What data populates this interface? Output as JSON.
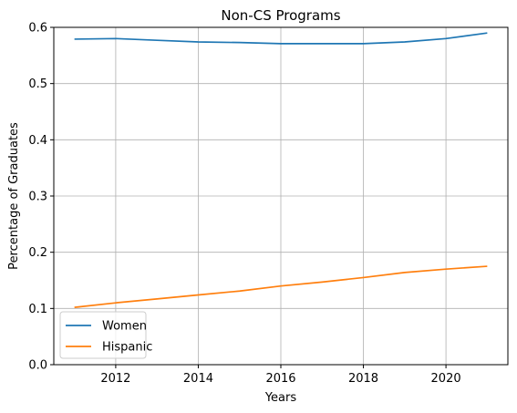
{
  "chart_data": {
    "type": "line",
    "title": "Non-CS Programs",
    "xlabel": "Years",
    "ylabel": "Percentage of Graduates",
    "xlim": [
      2010.5,
      2021.5
    ],
    "ylim": [
      0.0,
      0.6
    ],
    "xticks": [
      2012,
      2014,
      2016,
      2018,
      2020
    ],
    "yticks": [
      0.0,
      0.1,
      0.2,
      0.3,
      0.4,
      0.5,
      0.6
    ],
    "x": [
      2011,
      2012,
      2013,
      2014,
      2015,
      2016,
      2017,
      2018,
      2019,
      2020,
      2021
    ],
    "grid": true,
    "legend_position": "lower-left",
    "series": [
      {
        "name": "Women",
        "color": "#1f77b4",
        "values": [
          0.579,
          0.58,
          0.577,
          0.574,
          0.573,
          0.571,
          0.571,
          0.571,
          0.574,
          0.58,
          0.59
        ]
      },
      {
        "name": "Hispanic",
        "color": "#ff7f0e",
        "values": [
          0.102,
          0.11,
          0.117,
          0.124,
          0.131,
          0.14,
          0.147,
          0.155,
          0.164,
          0.17,
          0.175
        ]
      }
    ]
  }
}
